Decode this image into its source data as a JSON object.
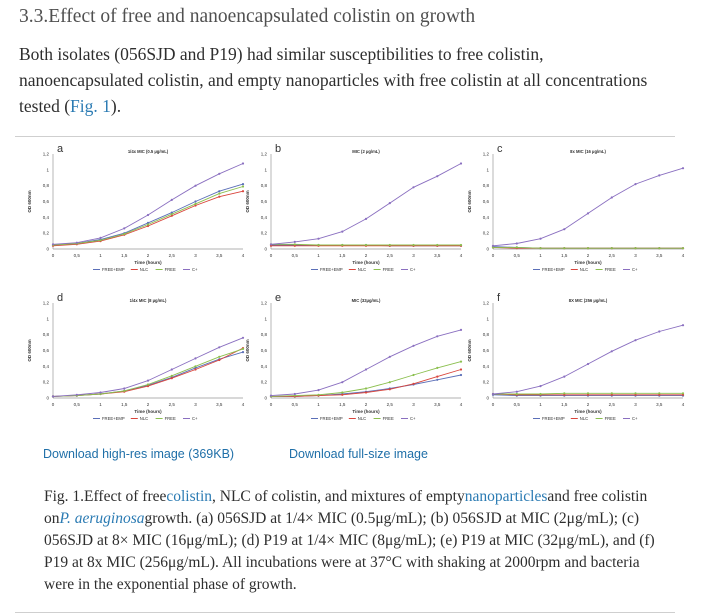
{
  "heading": "3.3.Effect of free and nanoencapsulated colistin on growth",
  "intro": {
    "text": "Both isolates (056SJD and P19) had similar susceptibilities to free colistin, nanoencapsulated colistin, and empty nanoparticles with free colistin at all concentrations tested (",
    "link": "Fig. 1",
    "after": ")."
  },
  "downloads": {
    "highres": "Download high-res image (369KB)",
    "fullsize": "Download full-size image"
  },
  "caption": {
    "p1": "Fig. 1.Effect of free",
    "l1": "colistin",
    "p2": ", NLC of colistin, and mixtures of empty",
    "l2": "nanoparticles",
    "p3": "and free colistin on",
    "l3": "P. aeruginosa",
    "p4": "growth. (a) 056SJD at 1/4× MIC (0.5μg/mL); (b) 056SJD at MIC (2μg/mL); (c) 056SJD at 8× MIC (16μg/mL); (d) P19 at 1/4× MIC (8μg/mL); (e) P19 at MIC (32μg/mL), and (f) P19 at 8x MIC (256μg/mL). All incubations were at 37°C with shaking at 2000rpm and bacteria were in the exponential phase of growth."
  },
  "colors": {
    "FREE+EMP": "#5b6fb8",
    "NLC": "#d9453c",
    "FREE": "#8bbf4e",
    "C+": "#8a6fc0"
  },
  "chart_data": [
    {
      "type": "line",
      "panel": "a",
      "title": "1/4x MIC (0.5 µg/mL)",
      "xlabel": "Time (hours)",
      "ylabel": "OD 600nm",
      "xlim": [
        0,
        4
      ],
      "ylim": [
        0,
        1.2
      ],
      "xticks": [
        "0",
        "0,5",
        "1",
        "1,5",
        "2",
        "2,5",
        "3",
        "3,5",
        "4"
      ],
      "yticks": [
        "0",
        "0,2",
        "0,4",
        "0,6",
        "0,8",
        "1",
        "1,2"
      ],
      "legend": [
        "FREE+EMP",
        "NLC",
        "FREE",
        "C+"
      ],
      "series": [
        {
          "name": "FREE+EMP",
          "x": [
            0,
            0.5,
            1,
            1.5,
            2,
            2.5,
            3,
            3.5,
            4
          ],
          "y": [
            0.05,
            0.07,
            0.12,
            0.2,
            0.33,
            0.46,
            0.6,
            0.73,
            0.82
          ]
        },
        {
          "name": "NLC",
          "x": [
            0,
            0.5,
            1,
            1.5,
            2,
            2.5,
            3,
            3.5,
            4
          ],
          "y": [
            0.04,
            0.06,
            0.1,
            0.18,
            0.29,
            0.42,
            0.55,
            0.66,
            0.73
          ]
        },
        {
          "name": "FREE",
          "x": [
            0,
            0.5,
            1,
            1.5,
            2,
            2.5,
            3,
            3.5,
            4
          ],
          "y": [
            0.05,
            0.07,
            0.11,
            0.19,
            0.31,
            0.44,
            0.57,
            0.7,
            0.79
          ]
        },
        {
          "name": "C+",
          "x": [
            0,
            0.5,
            1,
            1.5,
            2,
            2.5,
            3,
            3.5,
            4
          ],
          "y": [
            0.06,
            0.08,
            0.14,
            0.26,
            0.43,
            0.62,
            0.8,
            0.95,
            1.08
          ]
        }
      ]
    },
    {
      "type": "line",
      "panel": "b",
      "title": "MIC (2 µg/mL)",
      "xlabel": "Time (hours)",
      "ylabel": "OD 600nm",
      "xlim": [
        0,
        4
      ],
      "ylim": [
        0,
        1.2
      ],
      "xticks": [
        "0",
        "0,5",
        "1",
        "1,5",
        "2",
        "2,5",
        "3",
        "3,5",
        "4"
      ],
      "yticks": [
        "0",
        "0,2",
        "0,4",
        "0,6",
        "0,8",
        "1",
        "1,2"
      ],
      "legend": [
        "FREE+EMP",
        "NLC",
        "FREE",
        "C+"
      ],
      "series": [
        {
          "name": "FREE+EMP",
          "x": [
            0,
            0.5,
            1,
            1.5,
            2,
            2.5,
            3,
            3.5,
            4
          ],
          "y": [
            0.05,
            0.05,
            0.05,
            0.05,
            0.05,
            0.04,
            0.04,
            0.04,
            0.04
          ]
        },
        {
          "name": "NLC",
          "x": [
            0,
            0.5,
            1,
            1.5,
            2,
            2.5,
            3,
            3.5,
            4
          ],
          "y": [
            0.04,
            0.04,
            0.04,
            0.04,
            0.04,
            0.04,
            0.04,
            0.04,
            0.04
          ]
        },
        {
          "name": "FREE",
          "x": [
            0,
            0.5,
            1,
            1.5,
            2,
            2.5,
            3,
            3.5,
            4
          ],
          "y": [
            0.06,
            0.06,
            0.05,
            0.05,
            0.05,
            0.05,
            0.05,
            0.05,
            0.05
          ]
        },
        {
          "name": "C+",
          "x": [
            0,
            0.5,
            1,
            1.5,
            2,
            2.5,
            3,
            3.5,
            4
          ],
          "y": [
            0.06,
            0.09,
            0.13,
            0.22,
            0.38,
            0.58,
            0.78,
            0.92,
            1.08
          ]
        }
      ]
    },
    {
      "type": "line",
      "panel": "c",
      "title": "8x MIC (16 µg/mL)",
      "xlabel": "Time (hours)",
      "ylabel": "OD 600nm",
      "xlim": [
        0,
        4
      ],
      "ylim": [
        0,
        1.2
      ],
      "xticks": [
        "0",
        "0,5",
        "1",
        "1,5",
        "2",
        "2,5",
        "3",
        "3,5",
        "4"
      ],
      "yticks": [
        "0",
        "0,2",
        "0,4",
        "0,6",
        "0,8",
        "1",
        "1,2"
      ],
      "legend": [
        "FREE+EMP",
        "NLC",
        "FREE",
        "C+"
      ],
      "series": [
        {
          "name": "FREE+EMP",
          "x": [
            0,
            0.5,
            1,
            1.5,
            2,
            2.5,
            3,
            3.5,
            4
          ],
          "y": [
            0.03,
            0.02,
            0.01,
            0.01,
            0.01,
            0.01,
            0.01,
            0.01,
            0.01
          ]
        },
        {
          "name": "NLC",
          "x": [
            0,
            0.5,
            1,
            1.5,
            2,
            2.5,
            3,
            3.5,
            4
          ],
          "y": [
            0.02,
            0.01,
            0.01,
            0.01,
            0.01,
            0.01,
            0.01,
            0.01,
            0.01
          ]
        },
        {
          "name": "FREE",
          "x": [
            0,
            0.5,
            1,
            1.5,
            2,
            2.5,
            3,
            3.5,
            4
          ],
          "y": [
            0.02,
            0.02,
            0.01,
            0.01,
            0.01,
            0.01,
            0.01,
            0.01,
            0.01
          ]
        },
        {
          "name": "C+",
          "x": [
            0,
            0.5,
            1,
            1.5,
            2,
            2.5,
            3,
            3.5,
            4
          ],
          "y": [
            0.04,
            0.07,
            0.13,
            0.25,
            0.45,
            0.65,
            0.82,
            0.93,
            1.02
          ]
        }
      ]
    },
    {
      "type": "line",
      "panel": "d",
      "title": "1/4x MIC (8 µg/mL)",
      "xlabel": "Time (hours)",
      "ylabel": "OD 600nm",
      "xlim": [
        0,
        4
      ],
      "ylim": [
        0,
        1.2
      ],
      "xticks": [
        "0",
        "0,5",
        "1",
        "1,5",
        "2",
        "2,5",
        "3",
        "3,5",
        "4"
      ],
      "yticks": [
        "0",
        "0,2",
        "0,4",
        "0,6",
        "0,8",
        "1",
        "1,2"
      ],
      "legend": [
        "FREE+EMP",
        "NLC",
        "FREE",
        "C+"
      ],
      "series": [
        {
          "name": "FREE+EMP",
          "x": [
            0,
            0.5,
            1,
            1.5,
            2,
            2.5,
            3,
            3.5,
            4
          ],
          "y": [
            0.02,
            0.03,
            0.05,
            0.09,
            0.16,
            0.26,
            0.38,
            0.49,
            0.58
          ]
        },
        {
          "name": "NLC",
          "x": [
            0,
            0.5,
            1,
            1.5,
            2,
            2.5,
            3,
            3.5,
            4
          ],
          "y": [
            0.02,
            0.03,
            0.05,
            0.08,
            0.15,
            0.25,
            0.36,
            0.48,
            0.63
          ]
        },
        {
          "name": "FREE",
          "x": [
            0,
            0.5,
            1,
            1.5,
            2,
            2.5,
            3,
            3.5,
            4
          ],
          "y": [
            0.02,
            0.03,
            0.05,
            0.09,
            0.17,
            0.28,
            0.4,
            0.52,
            0.62
          ]
        },
        {
          "name": "C+",
          "x": [
            0,
            0.5,
            1,
            1.5,
            2,
            2.5,
            3,
            3.5,
            4
          ],
          "y": [
            0.02,
            0.04,
            0.07,
            0.12,
            0.22,
            0.36,
            0.5,
            0.64,
            0.76
          ]
        }
      ]
    },
    {
      "type": "line",
      "panel": "e",
      "title": "MIC (32µg/mL)",
      "xlabel": "Time (hours)",
      "ylabel": "OD 600nm",
      "xlim": [
        0,
        4
      ],
      "ylim": [
        0,
        1.2
      ],
      "xticks": [
        "0",
        "0,5",
        "1",
        "1,5",
        "2",
        "2,5",
        "3",
        "3,5",
        "4"
      ],
      "yticks": [
        "0",
        "0,2",
        "0,4",
        "0,6",
        "0,8",
        "1",
        "1,2"
      ],
      "legend": [
        "FREE+EMP",
        "NLC",
        "FREE",
        "C+"
      ],
      "series": [
        {
          "name": "FREE+EMP",
          "x": [
            0,
            0.5,
            1,
            1.5,
            2,
            2.5,
            3,
            3.5,
            4
          ],
          "y": [
            0.02,
            0.02,
            0.03,
            0.05,
            0.08,
            0.12,
            0.17,
            0.23,
            0.29
          ]
        },
        {
          "name": "NLC",
          "x": [
            0,
            0.5,
            1,
            1.5,
            2,
            2.5,
            3,
            3.5,
            4
          ],
          "y": [
            0.02,
            0.02,
            0.03,
            0.04,
            0.07,
            0.11,
            0.18,
            0.27,
            0.36
          ]
        },
        {
          "name": "FREE",
          "x": [
            0,
            0.5,
            1,
            1.5,
            2,
            2.5,
            3,
            3.5,
            4
          ],
          "y": [
            0.02,
            0.03,
            0.04,
            0.07,
            0.12,
            0.2,
            0.29,
            0.38,
            0.46
          ]
        },
        {
          "name": "C+",
          "x": [
            0,
            0.5,
            1,
            1.5,
            2,
            2.5,
            3,
            3.5,
            4
          ],
          "y": [
            0.03,
            0.05,
            0.1,
            0.2,
            0.36,
            0.52,
            0.66,
            0.78,
            0.86
          ]
        }
      ]
    },
    {
      "type": "line",
      "panel": "f",
      "title": "8X MIC (256 µg/mL)",
      "xlabel": "Time (hours)",
      "ylabel": "OD 600nm",
      "xlim": [
        0,
        4
      ],
      "ylim": [
        0,
        1.2
      ],
      "xticks": [
        "0",
        "0,5",
        "1",
        "1,5",
        "2",
        "2,5",
        "3",
        "3,5",
        "4"
      ],
      "yticks": [
        "0",
        "0,2",
        "0,4",
        "0,6",
        "0,8",
        "1",
        "1,2"
      ],
      "legend": [
        "FREE+EMP",
        "NLC",
        "FREE",
        "C+"
      ],
      "series": [
        {
          "name": "FREE+EMP",
          "x": [
            0,
            0.5,
            1,
            1.5,
            2,
            2.5,
            3,
            3.5,
            4
          ],
          "y": [
            0.04,
            0.03,
            0.03,
            0.03,
            0.03,
            0.03,
            0.03,
            0.03,
            0.03
          ]
        },
        {
          "name": "NLC",
          "x": [
            0,
            0.5,
            1,
            1.5,
            2,
            2.5,
            3,
            3.5,
            4
          ],
          "y": [
            0.05,
            0.04,
            0.04,
            0.04,
            0.04,
            0.04,
            0.04,
            0.04,
            0.04
          ]
        },
        {
          "name": "FREE",
          "x": [
            0,
            0.5,
            1,
            1.5,
            2,
            2.5,
            3,
            3.5,
            4
          ],
          "y": [
            0.05,
            0.05,
            0.05,
            0.06,
            0.06,
            0.06,
            0.06,
            0.06,
            0.06
          ]
        },
        {
          "name": "C+",
          "x": [
            0,
            0.5,
            1,
            1.5,
            2,
            2.5,
            3,
            3.5,
            4
          ],
          "y": [
            0.05,
            0.08,
            0.15,
            0.27,
            0.43,
            0.59,
            0.73,
            0.84,
            0.92
          ]
        }
      ]
    }
  ]
}
